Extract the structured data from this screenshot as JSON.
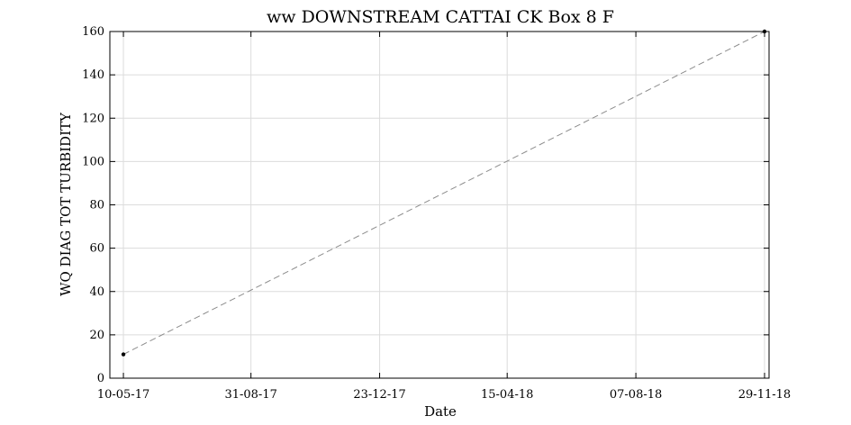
{
  "chart_data": {
    "type": "line",
    "title": "ww DOWNSTREAM CATTAI CK Box 8 F",
    "xlabel": "Date",
    "ylabel": "WQ DIAG TOT TURBIDITY",
    "x_ticks": [
      "10-05-17",
      "31-08-17",
      "23-12-17",
      "15-04-18",
      "07-08-18",
      "29-11-18"
    ],
    "y_ticks": [
      0,
      20,
      40,
      60,
      80,
      100,
      120,
      140,
      160
    ],
    "ylim": [
      0,
      160
    ],
    "xlim": [
      "2017-04-28",
      "2018-12-03"
    ],
    "grid": true,
    "series": [
      {
        "x": [
          "2017-05-10",
          "2018-11-29"
        ],
        "y": [
          11,
          160
        ],
        "line_color": "#8c8c8c",
        "line_style": "dashed",
        "marker_color": "#000000"
      }
    ]
  }
}
